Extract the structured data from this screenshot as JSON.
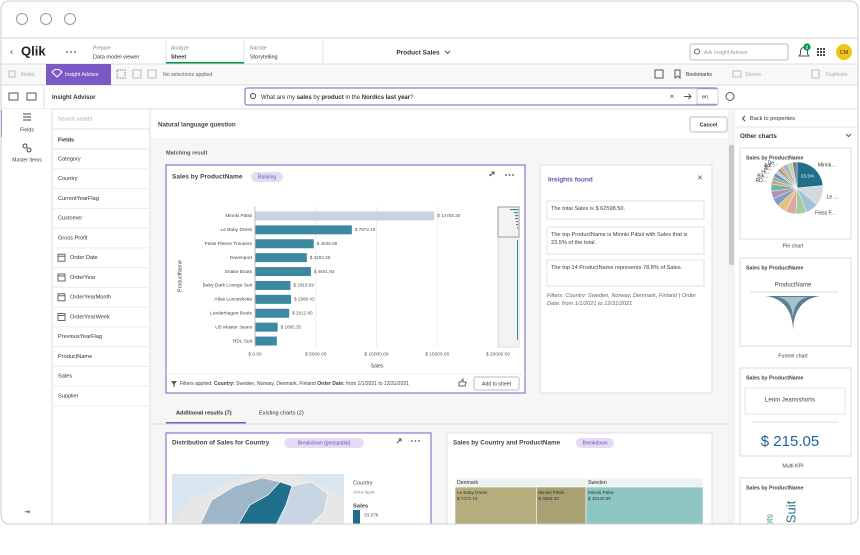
{
  "header": {
    "logo": "Qlik",
    "nav": [
      {
        "label": "Prepare",
        "sub": "Data model viewer"
      },
      {
        "label": "Analyze",
        "sub": "Sheet",
        "active": true
      },
      {
        "label": "Narrate",
        "sub": "Storytelling"
      }
    ],
    "app_title": "Product Sales",
    "search": "Ask Insight Advisor",
    "notifications": "2",
    "avatar": "CM"
  },
  "toolbar": {
    "notes": "Notes",
    "insight_advisor": "Insight Advisor",
    "selections": "No selections applied",
    "bookmarks": "Bookmarks",
    "sheets": "Sheets",
    "duplicate": "Duplicate"
  },
  "assets": {
    "title": "Insight Advisor",
    "search": "Search assets",
    "tabs": [
      "Fields",
      "Master items"
    ],
    "header": "Fields",
    "fields": [
      {
        "name": "Category"
      },
      {
        "name": "Country"
      },
      {
        "name": "CurrentYearFlag"
      },
      {
        "name": "Customer"
      },
      {
        "name": "Gross Profit"
      },
      {
        "name": "Order Date",
        "calendar": true
      },
      {
        "name": "OrderYear",
        "calendar": true
      },
      {
        "name": "OrderYearMonth",
        "calendar": true
      },
      {
        "name": "OrderYearWeek",
        "calendar": true
      },
      {
        "name": "PreviousYearFlag"
      },
      {
        "name": "ProductName"
      },
      {
        "name": "Sales"
      },
      {
        "name": "Supplier"
      }
    ]
  },
  "query": {
    "segments": [
      {
        "text": "What are my ",
        "bold": false
      },
      {
        "text": "sales",
        "bold": true
      },
      {
        "text": " by ",
        "bold": false
      },
      {
        "text": "product",
        "bold": true
      },
      {
        "text": " in the ",
        "bold": false
      },
      {
        "text": "Nordics",
        "bold": true
      },
      {
        "text": " ",
        "bold": false
      },
      {
        "text": "last year",
        "bold": true
      },
      {
        "text": "?",
        "bold": false
      }
    ],
    "language": "en"
  },
  "main": {
    "heading": "Natural language question",
    "cancel": "Cancel",
    "matching": "Matching result",
    "tabs": [
      "Additional results (7)",
      "Existing charts (2)"
    ]
  },
  "insights": {
    "title": "Insights found",
    "items": [
      "The total Sales is $ 62598.50.",
      "The top ProductName is Minnki Pälsii with Sales that is 23.5% of the total.",
      "The top 14 ProductName represents 78.8% of Sales."
    ],
    "filters": "Filters: Country: Sweden, Norway, Denmark, Finland | Order Date: from 1/1/2021 to 12/31/2021"
  },
  "map_card": {
    "title": "Distribution of Sales for Country",
    "badge": "Breakdown (geospatial)",
    "legend": {
      "layer": "Country",
      "layer_type": "Area layer",
      "measure": "Sales",
      "max": "33.07k"
    }
  },
  "other_charts": {
    "back": "Back to properties",
    "title": "Other charts",
    "cards": [
      {
        "title": "Sales by ProductName",
        "label": "ProductName",
        "caption": "Funnel chart"
      },
      {
        "title": "Sales by ProductName",
        "label": "Lenin Jeansshorts",
        "kpi": "$ 215.05",
        "caption": "Multi KPI"
      },
      {
        "title": "Sales by ProductName",
        "words": [
          "ots",
          "Suit"
        ]
      }
    ]
  },
  "chart_data": [
    {
      "type": "bar",
      "orientation": "horizontal",
      "title": "Sales by ProductName",
      "badge": "Ranking",
      "categories": [
        "Minnki Pälsii",
        "Le Baby Dress",
        "Feiss Fleece Trousers",
        "Davenport",
        "Snake Boots",
        "Baby Dark Lounge Suit",
        "Atlas Luxusvkotta",
        "Lunderhagen Boots",
        "US Master Jeans",
        "RDL Suit"
      ],
      "values": [
        14755.3,
        7972.1,
        4836.88,
        4263.28,
        4601.93,
        2918.69,
        2968.42,
        2812.8,
        1865.35,
        1800
      ],
      "value_labels": [
        "$ 14755.30",
        "$ 7972.10",
        "$ 4836.88",
        "$ 4263.28",
        "$ 4601.93",
        "$ 2918.69",
        "$ 2968.42",
        "$ 2812.80",
        "$ 1865.35",
        null
      ],
      "color": "#3e89a2",
      "highlight_color": "#c9d3dd",
      "highlight_index": 0,
      "xlim": [
        0,
        20000
      ],
      "xticks": [
        {
          "value": 0,
          "label": "$ 0.00"
        },
        {
          "value": 5000,
          "label": "$ 5000.00"
        },
        {
          "value": 10000,
          "label": "$ 10000.00"
        },
        {
          "value": 15000,
          "label": "$ 15000.00"
        },
        {
          "value": 20000,
          "label": "$ 20000.00"
        }
      ],
      "x_label": "Sales",
      "y_label": "ProductName",
      "grid": true,
      "footer": [
        {
          "text": "Filters applied: ",
          "bold": false
        },
        {
          "text": "Country:",
          "bold": true
        },
        {
          "text": " Sweden, Norway, Denmark, Finland ",
          "bold": false
        },
        {
          "text": "Order Date:",
          "bold": true
        },
        {
          "text": " from 1/1/2021 to 12/31/2021",
          "bold": false
        }
      ],
      "action": "Add to sheet"
    },
    {
      "type": "treemap",
      "title": "Sales by Country and ProductName",
      "badge": "Breakdown",
      "groups": [
        {
          "name": "Denmark",
          "items": [
            {
              "name": "Le Baby Dress",
              "value": 7472.1,
              "label": "$ 7472.10",
              "color": "#b6ad7d"
            },
            {
              "name": "Minnki Pälsii",
              "value": 4556.33,
              "label": "$ 4556.33",
              "color": "#a9a173"
            }
          ]
        },
        {
          "name": "Sweden",
          "items": [
            {
              "name": "Minnki Pälsii",
              "value": 10140.9,
              "label": "$ 10140.90",
              "color": "#8ec7c1"
            }
          ]
        }
      ]
    },
    {
      "type": "pie",
      "title": "Sales by ProductName",
      "caption": "Pie chart",
      "categories": [
        "Minnk...",
        "Le ...",
        "Feiss F...",
        null,
        null,
        null,
        null,
        null,
        null,
        "RD...",
        "Bik...",
        "Hi...",
        "Al...",
        "Adi...",
        "De...",
        null,
        null,
        null
      ],
      "values": [
        23.5,
        12.7,
        7.7,
        6.8,
        6.5,
        5.9,
        5.2,
        4.7,
        4.5,
        2.5,
        2.4,
        2.2,
        2.1,
        2.0,
        1.9,
        3.4,
        3.2,
        2.8
      ],
      "value_labels": [
        "23.5%",
        null,
        null,
        null,
        null,
        null,
        null,
        null,
        null,
        null,
        null,
        null,
        null,
        null,
        null,
        null,
        null,
        null
      ],
      "colors": [
        "#1f6e8a",
        "#d3dadf",
        "#9cc3d8",
        "#a9c9a0",
        "#d9a9a5",
        "#e2c27f",
        "#7f9fc9",
        "#b790b0",
        "#6fb6a6",
        "#c9a66b",
        "#98a8b4",
        "#5e8fa4",
        "#d2bbe0",
        "#8ba872",
        "#e4a08d",
        "#a7b4c9",
        "#c6d59a",
        "#7c7aa8"
      ]
    }
  ]
}
